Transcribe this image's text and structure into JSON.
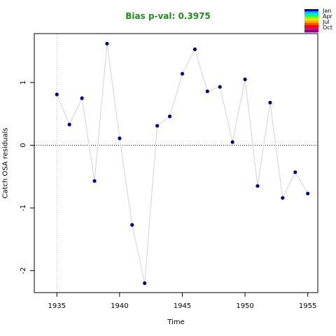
{
  "chart_data": {
    "type": "scatter",
    "title": "Bias p-val: 0.3975",
    "xlabel": "Time",
    "ylabel": "Catch OSA residuals",
    "xlim": [
      1933.2,
      1955.8
    ],
    "ylim": [
      -2.35,
      1.78
    ],
    "x_ticks": [
      1935,
      1940,
      1945,
      1950,
      1955
    ],
    "y_ticks": [
      -2,
      -1,
      0,
      1
    ],
    "reference_line_y": 0,
    "reference_line_x": 1935,
    "line_color": "#d3d3d3",
    "point_color": "#00008B",
    "title_color": "#228B22",
    "x": [
      1935,
      1936,
      1937,
      1938,
      1939,
      1940,
      1941,
      1942,
      1943,
      1944,
      1945,
      1946,
      1947,
      1948,
      1949,
      1950,
      1951,
      1952,
      1953,
      1954,
      1955
    ],
    "y": [
      0.81,
      0.33,
      0.75,
      -0.57,
      1.62,
      0.11,
      -1.27,
      -2.2,
      0.31,
      0.46,
      1.14,
      1.53,
      0.86,
      0.93,
      0.05,
      1.05,
      -0.65,
      0.68,
      -0.84,
      -0.43,
      -0.77
    ],
    "legend": {
      "labels": [
        "Jan",
        "Apr",
        "Jul",
        "Oct"
      ],
      "colors": [
        "#0000CD",
        "#00BFFF",
        "#00FF7F",
        "#7CFC00",
        "#FFD700",
        "#FFA500",
        "#FF4500",
        "#FF0000",
        "#C71585",
        "#8B008B"
      ]
    }
  }
}
